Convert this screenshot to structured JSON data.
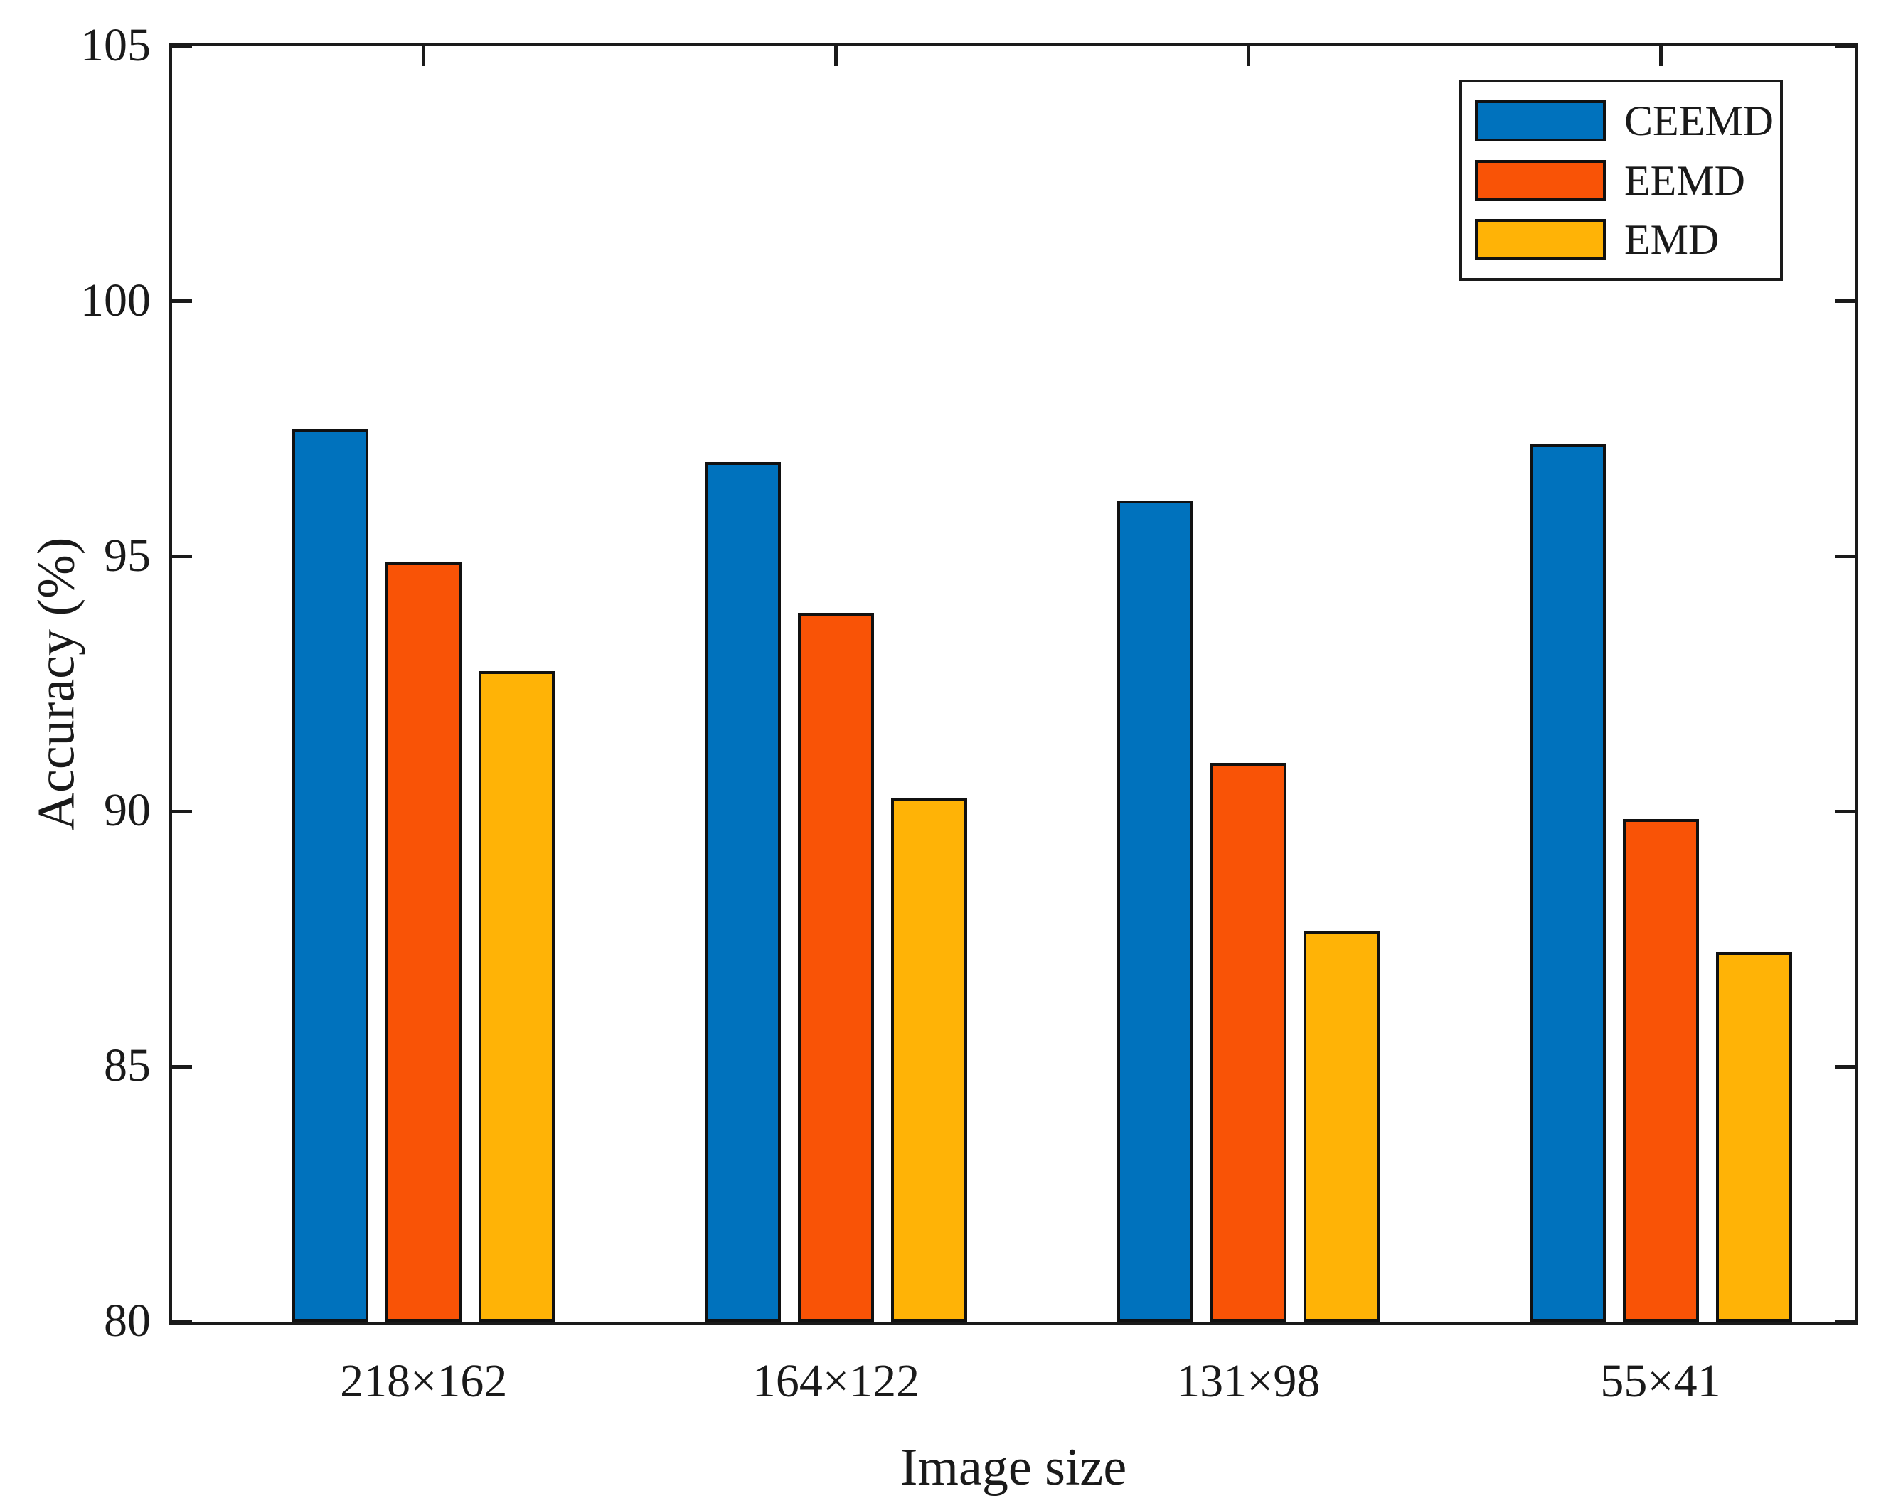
{
  "figure": {
    "background": "#ffffff",
    "axis_color": "#1a1a1a",
    "text_color": "#1a1a1a",
    "bar_border_color": "#111111"
  },
  "chart_data": {
    "type": "bar",
    "title": "",
    "xlabel": "Image size",
    "ylabel": "Accuracy (%)",
    "categories": [
      "218×162",
      "164×122",
      "131×98",
      "55×41"
    ],
    "series": [
      {
        "name": "CEEMD",
        "color": "#0072BD",
        "values": [
          97.5,
          96.85,
          96.1,
          97.2
        ]
      },
      {
        "name": "EEMD",
        "color": "#F95306",
        "values": [
          94.9,
          93.9,
          90.95,
          89.85
        ]
      },
      {
        "name": "EMD",
        "color": "#FFB306",
        "values": [
          92.75,
          90.25,
          87.65,
          87.25
        ]
      }
    ],
    "ylim": [
      80,
      105
    ],
    "yticks": [
      80,
      85,
      90,
      95,
      100,
      105
    ],
    "grid": false,
    "legend_position": "top-right"
  }
}
